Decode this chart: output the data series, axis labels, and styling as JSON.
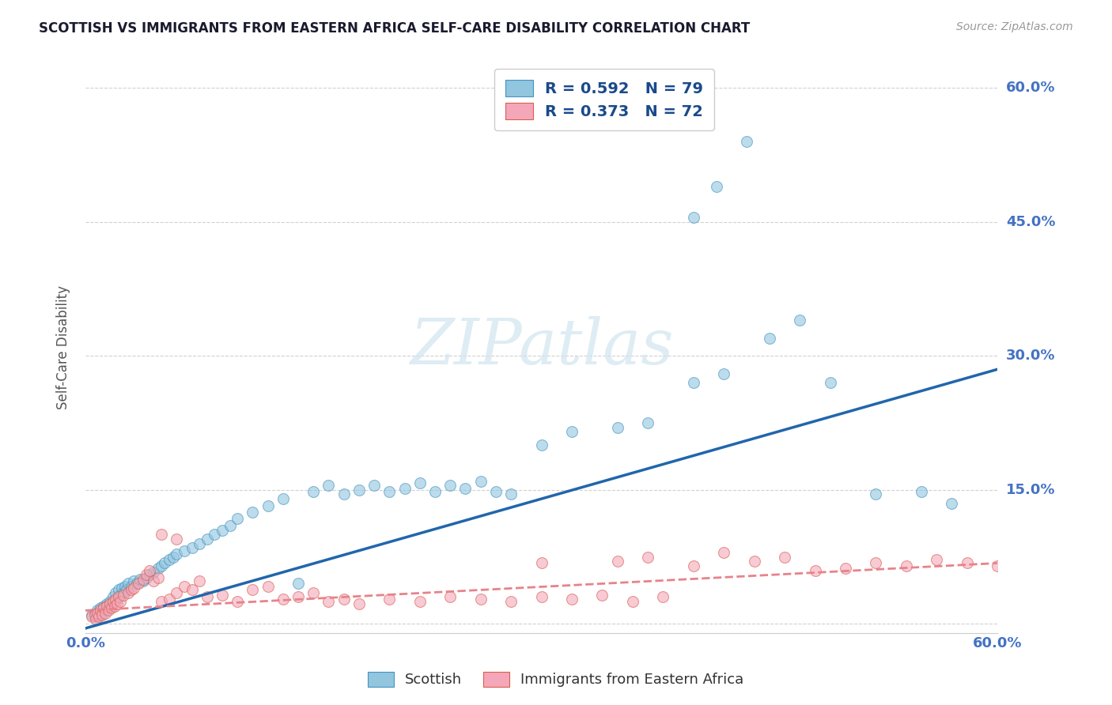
{
  "title": "SCOTTISH VS IMMIGRANTS FROM EASTERN AFRICA SELF-CARE DISABILITY CORRELATION CHART",
  "source": "Source: ZipAtlas.com",
  "ylabel": "Self-Care Disability",
  "xlim": [
    0.0,
    0.6
  ],
  "ylim": [
    -0.01,
    0.63
  ],
  "yticks": [
    0.0,
    0.15,
    0.3,
    0.45,
    0.6
  ],
  "ytick_labels": [
    "",
    "15.0%",
    "30.0%",
    "45.0%",
    "60.0%"
  ],
  "xtick_labels": [
    "0.0%",
    "",
    "",
    "",
    "60.0%"
  ],
  "blue_color": "#92c5de",
  "blue_edge_color": "#4393c3",
  "pink_color": "#f4a7b9",
  "pink_edge_color": "#d6604d",
  "blue_line_color": "#2166ac",
  "pink_line_color": "#e8828a",
  "title_color": "#1a1a2e",
  "axis_color": "#4472c4",
  "legend_text_color": "#1a4a8a",
  "watermark": "ZIPatlas",
  "watermark_color": "#d0e4f0",
  "grid_color": "#cccccc",
  "background_color": "#ffffff",
  "scottish_x": [
    0.004,
    0.006,
    0.007,
    0.008,
    0.009,
    0.01,
    0.011,
    0.012,
    0.013,
    0.014,
    0.015,
    0.016,
    0.017,
    0.018,
    0.019,
    0.02,
    0.021,
    0.022,
    0.023,
    0.024,
    0.025,
    0.026,
    0.027,
    0.028,
    0.03,
    0.032,
    0.034,
    0.036,
    0.038,
    0.04,
    0.042,
    0.045,
    0.048,
    0.05,
    0.052,
    0.055,
    0.058,
    0.06,
    0.065,
    0.07,
    0.075,
    0.08,
    0.085,
    0.09,
    0.095,
    0.1,
    0.11,
    0.12,
    0.13,
    0.14,
    0.15,
    0.16,
    0.17,
    0.18,
    0.19,
    0.2,
    0.21,
    0.22,
    0.23,
    0.24,
    0.25,
    0.26,
    0.27,
    0.28,
    0.3,
    0.32,
    0.35,
    0.37,
    0.4,
    0.42,
    0.45,
    0.47,
    0.49,
    0.52,
    0.55,
    0.57,
    0.4,
    0.415,
    0.435
  ],
  "scottish_y": [
    0.01,
    0.012,
    0.008,
    0.015,
    0.01,
    0.018,
    0.012,
    0.02,
    0.015,
    0.022,
    0.018,
    0.025,
    0.02,
    0.03,
    0.025,
    0.035,
    0.028,
    0.038,
    0.032,
    0.04,
    0.035,
    0.042,
    0.038,
    0.045,
    0.042,
    0.048,
    0.045,
    0.05,
    0.048,
    0.052,
    0.055,
    0.058,
    0.062,
    0.065,
    0.068,
    0.072,
    0.075,
    0.078,
    0.082,
    0.085,
    0.09,
    0.095,
    0.1,
    0.105,
    0.11,
    0.118,
    0.125,
    0.132,
    0.14,
    0.045,
    0.148,
    0.155,
    0.145,
    0.15,
    0.155,
    0.148,
    0.152,
    0.158,
    0.148,
    0.155,
    0.152,
    0.16,
    0.148,
    0.145,
    0.2,
    0.215,
    0.22,
    0.225,
    0.27,
    0.28,
    0.32,
    0.34,
    0.27,
    0.145,
    0.148,
    0.135,
    0.455,
    0.49,
    0.54
  ],
  "immigrant_x": [
    0.004,
    0.006,
    0.007,
    0.008,
    0.009,
    0.01,
    0.011,
    0.012,
    0.013,
    0.014,
    0.015,
    0.016,
    0.017,
    0.018,
    0.019,
    0.02,
    0.021,
    0.022,
    0.023,
    0.025,
    0.028,
    0.03,
    0.032,
    0.035,
    0.038,
    0.04,
    0.042,
    0.045,
    0.048,
    0.05,
    0.055,
    0.06,
    0.065,
    0.07,
    0.075,
    0.08,
    0.09,
    0.1,
    0.11,
    0.12,
    0.13,
    0.14,
    0.15,
    0.16,
    0.17,
    0.18,
    0.2,
    0.22,
    0.24,
    0.26,
    0.28,
    0.3,
    0.32,
    0.34,
    0.36,
    0.38,
    0.4,
    0.42,
    0.44,
    0.46,
    0.48,
    0.5,
    0.52,
    0.54,
    0.56,
    0.58,
    0.6,
    0.35,
    0.37,
    0.3,
    0.05,
    0.06
  ],
  "immigrant_y": [
    0.008,
    0.01,
    0.006,
    0.012,
    0.008,
    0.015,
    0.01,
    0.018,
    0.012,
    0.02,
    0.015,
    0.022,
    0.018,
    0.025,
    0.02,
    0.028,
    0.022,
    0.03,
    0.025,
    0.032,
    0.035,
    0.038,
    0.04,
    0.045,
    0.05,
    0.055,
    0.06,
    0.048,
    0.052,
    0.025,
    0.028,
    0.035,
    0.042,
    0.038,
    0.048,
    0.03,
    0.032,
    0.025,
    0.038,
    0.042,
    0.028,
    0.03,
    0.035,
    0.025,
    0.028,
    0.022,
    0.028,
    0.025,
    0.03,
    0.028,
    0.025,
    0.03,
    0.028,
    0.032,
    0.025,
    0.03,
    0.065,
    0.08,
    0.07,
    0.075,
    0.06,
    0.062,
    0.068,
    0.065,
    0.072,
    0.068,
    0.065,
    0.07,
    0.075,
    0.068,
    0.1,
    0.095
  ],
  "blue_trend_x": [
    0.0,
    0.6
  ],
  "blue_trend_y": [
    -0.005,
    0.285
  ],
  "pink_trend_x": [
    0.0,
    0.6
  ],
  "pink_trend_y": [
    0.015,
    0.068
  ]
}
